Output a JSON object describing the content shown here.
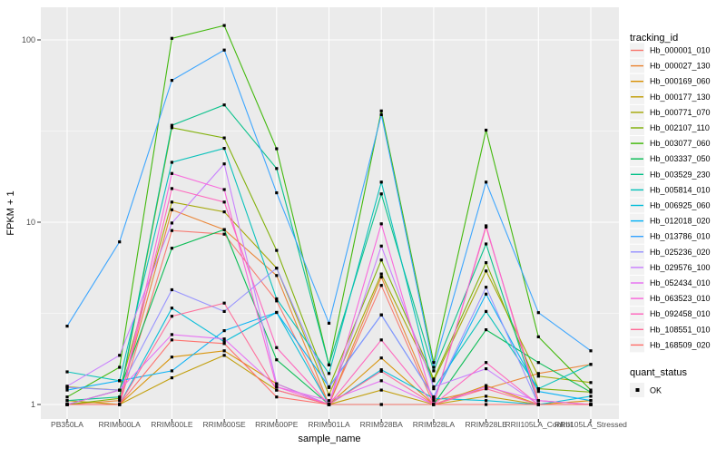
{
  "figure": {
    "y_axis_title": "FPKM + 1",
    "x_axis_title": "sample_name",
    "y_tick_labels": [
      "100",
      "10",
      "1"
    ],
    "y_tick_values": [
      100,
      10,
      1
    ],
    "colors": {
      "panel_background": "#EBEBEB",
      "gridline": "#FFFFFF",
      "tick_text": "#4D4D4D",
      "title_text": "#000000",
      "point": "#000000",
      "legend_key_background": "#F2F2F2"
    }
  },
  "legend": {
    "tracking_title": "tracking_id",
    "quant_title": "quant_status",
    "quant_items": [
      {
        "label": "OK"
      }
    ]
  },
  "chart_data": {
    "type": "line",
    "title": "",
    "xlabel": "sample_name",
    "ylabel": "FPKM + 1",
    "y_scale": "log10",
    "ylim": [
      0.83,
      151
    ],
    "grid": "on",
    "legend_position": "right",
    "categories": [
      "PB350LA",
      "RRIM600LA",
      "RRIM600LE",
      "RRIM600SE",
      "RRIM600PE",
      "RRIM901LA",
      "RRIM928BA",
      "RRIM928LA",
      "RRIM928LE",
      "RRII105LA_Control",
      "RRII105LA_Stressed"
    ],
    "series": [
      {
        "name": "Hb_000001_010",
        "color": "#F8766D",
        "values": [
          1.0,
          1.0,
          9.0,
          8.6,
          3.7,
          1.0,
          4.5,
          1.0,
          9.4,
          1.05,
          1.0
        ]
      },
      {
        "name": "Hb_000027_130",
        "color": "#EA8331",
        "values": [
          1.0,
          1.05,
          11.7,
          9.1,
          5.1,
          1.0,
          5.0,
          1.05,
          1.22,
          1.48,
          1.66
        ]
      },
      {
        "name": "Hb_000169_060",
        "color": "#D89000",
        "values": [
          1.0,
          1.0,
          1.82,
          1.97,
          1.3,
          1.0,
          1.8,
          1.0,
          1.27,
          1.0,
          1.05
        ]
      },
      {
        "name": "Hb_000177_130",
        "color": "#C09B00",
        "values": [
          1.05,
          1.0,
          1.4,
          1.86,
          1.2,
          1.0,
          1.2,
          1.0,
          1.11,
          1.0,
          1.0
        ]
      },
      {
        "name": "Hb_000771_070",
        "color": "#A3A500",
        "values": [
          1.25,
          1.2,
          12.9,
          11.4,
          5.6,
          1.13,
          5.2,
          1.35,
          5.4,
          1.43,
          1.32
        ]
      },
      {
        "name": "Hb_002107_110",
        "color": "#7CAE00",
        "values": [
          1.0,
          1.08,
          33.0,
          29.0,
          7.0,
          1.24,
          6.2,
          1.38,
          6.0,
          1.22,
          1.17
        ]
      },
      {
        "name": "Hb_003077_060",
        "color": "#39B600",
        "values": [
          1.1,
          1.6,
          102,
          120,
          25.3,
          1.65,
          40.8,
          1.7,
          32.0,
          2.35,
          1.2
        ]
      },
      {
        "name": "Hb_003337_050",
        "color": "#00BB4E",
        "values": [
          1.0,
          1.2,
          7.2,
          9.1,
          1.76,
          1.0,
          1.0,
          1.0,
          2.57,
          1.7,
          1.17
        ]
      },
      {
        "name": "Hb_003529_230",
        "color": "#00C087",
        "values": [
          1.05,
          1.1,
          34.0,
          44.0,
          19.7,
          1.65,
          14.3,
          1.53,
          7.6,
          1.0,
          1.0
        ]
      },
      {
        "name": "Hb_005814_010",
        "color": "#00C0B8",
        "values": [
          1.51,
          1.35,
          21.3,
          25.4,
          3.8,
          1.48,
          16.6,
          1.22,
          3.24,
          1.22,
          1.66
        ]
      },
      {
        "name": "Hb_006925_060",
        "color": "#00BCD8",
        "values": [
          1.0,
          1.0,
          3.38,
          2.21,
          3.2,
          1.0,
          1.55,
          1.08,
          1.05,
          1.0,
          1.11
        ]
      },
      {
        "name": "Hb_012018_020",
        "color": "#00B0F6",
        "values": [
          1.2,
          1.35,
          1.53,
          2.54,
          3.2,
          1.25,
          3.1,
          1.1,
          4.03,
          1.18,
          1.05
        ]
      },
      {
        "name": "Hb_013786_010",
        "color": "#35A2FF",
        "values": [
          2.69,
          7.8,
          60.0,
          88.0,
          14.5,
          2.79,
          38.9,
          1.6,
          16.6,
          3.19,
          1.97
        ]
      },
      {
        "name": "Hb_025236_020",
        "color": "#9590FF",
        "values": [
          1.24,
          1.2,
          4.26,
          3.24,
          5.6,
          1.24,
          3.1,
          1.1,
          4.4,
          1.0,
          1.0
        ]
      },
      {
        "name": "Hb_029576_100",
        "color": "#C77CFF",
        "values": [
          1.26,
          1.86,
          9.9,
          20.9,
          1.3,
          1.0,
          7.4,
          1.25,
          1.57,
          1.0,
          1.0
        ]
      },
      {
        "name": "Hb_052434_010",
        "color": "#E76BF3",
        "values": [
          1.0,
          1.2,
          2.42,
          2.29,
          1.25,
          1.05,
          1.35,
          1.0,
          1.25,
          1.05,
          1.0
        ]
      },
      {
        "name": "Hb_063523_010",
        "color": "#FA62DB",
        "values": [
          1.0,
          1.0,
          18.5,
          15.1,
          1.25,
          1.0,
          9.8,
          1.0,
          9.55,
          1.0,
          1.0
        ]
      },
      {
        "name": "Hb_092458_010",
        "color": "#FF62BC",
        "values": [
          1.0,
          1.0,
          15.3,
          12.9,
          2.05,
          1.0,
          2.26,
          1.0,
          1.7,
          1.0,
          1.0
        ]
      },
      {
        "name": "Hb_108551_010",
        "color": "#FF6A98",
        "values": [
          1.0,
          1.0,
          3.05,
          3.6,
          1.2,
          1.0,
          1.52,
          1.0,
          1.22,
          1.0,
          1.0
        ]
      },
      {
        "name": "Hb_168509_020",
        "color": "#FF6C67",
        "values": [
          1.0,
          1.0,
          2.26,
          2.16,
          1.1,
          1.0,
          1.0,
          1.0,
          1.0,
          1.0,
          1.0
        ]
      }
    ]
  }
}
